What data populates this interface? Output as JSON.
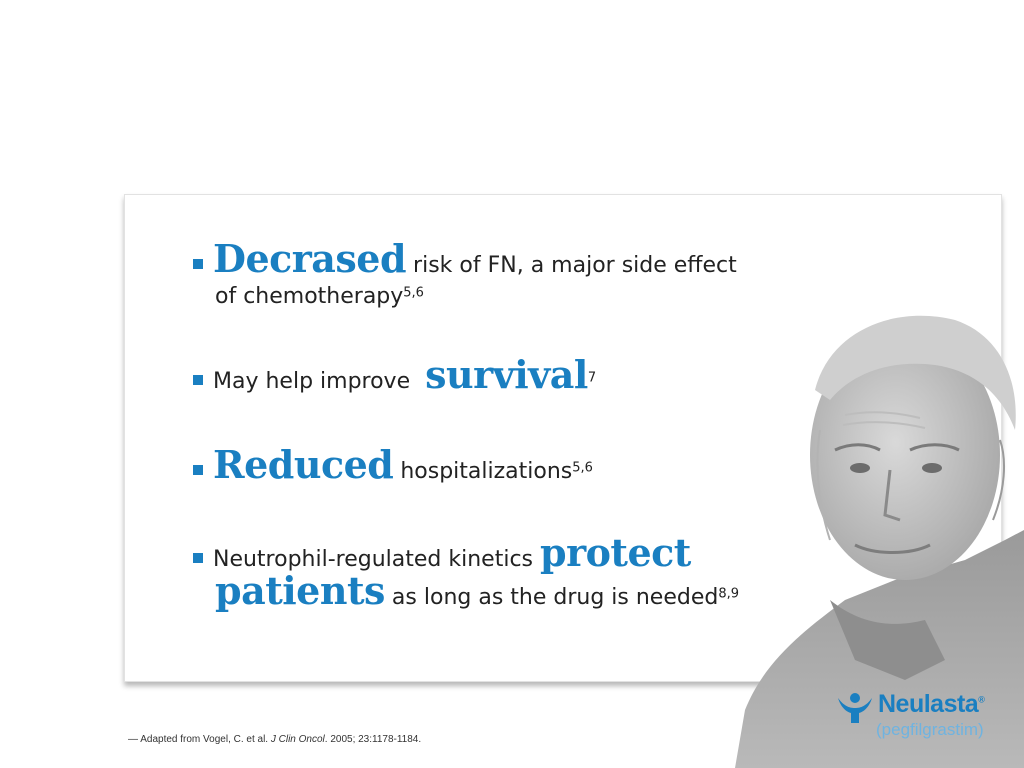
{
  "bullets": [
    {
      "emphasis": "Decrased",
      "text": " risk of FN, a major side effect",
      "line2": "of chemotherapy",
      "ref": "5,6"
    },
    {
      "text": "May help improve ",
      "emphasis": "survival",
      "ref": "7"
    },
    {
      "emphasis": "Reduced",
      "text": " hospitalizations",
      "ref": "5,6"
    },
    {
      "text": "Neutrophil-regulated kinetics ",
      "emphasis": "protect",
      "line2_emphasis": "patients",
      "line2_text": " as long as the drug is needed",
      "ref": "8,9"
    }
  ],
  "footnote": {
    "prefix": "— Adapted from Vogel, C. et al.",
    "journal_sep": " ",
    "journal": "J Clin Oncol",
    "suffix": ". 2005; 23:1178-1184."
  },
  "logo": {
    "name": "Neulasta",
    "mark": "®",
    "generic": "(pegfilgrastim)"
  },
  "colors": {
    "accent": "#1a7fc1",
    "text": "#222222"
  },
  "icons": [
    "bullet-square-icon",
    "neulasta-figure-icon",
    "elderly-man-photo"
  ]
}
